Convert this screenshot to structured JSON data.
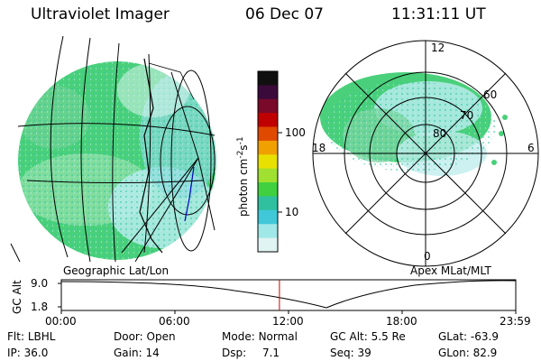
{
  "header": {
    "instrument": "Ultraviolet Imager",
    "date": "06 Dec 07",
    "time": "11:31:11 UT"
  },
  "left_panel": {
    "caption": "Geographic Lat/Lon"
  },
  "right_panel": {
    "caption": "Apex MLat/MLT",
    "mlt_labels": [
      "12",
      "18",
      "6",
      "0"
    ],
    "lat_labels": [
      "60",
      "70",
      "80"
    ]
  },
  "colorbar": {
    "unit_label": "photon cm",
    "unit_exp1": "-2",
    "unit_mid": "s",
    "unit_exp2": "-1",
    "ticks": [
      "100",
      "10"
    ],
    "scale": "log",
    "colors": [
      "#101010",
      "#3a0a3a",
      "#7a0a2a",
      "#c00000",
      "#e04a00",
      "#f0a000",
      "#e8e000",
      "#a0e030",
      "#40d040",
      "#30c0a0",
      "#40c8d8",
      "#a0e8e8",
      "#e0f4f4"
    ]
  },
  "timeline": {
    "ylabel": "GC Alt",
    "y_ticks": [
      "9.0",
      "1.8"
    ],
    "x_ticks": [
      "00:00",
      "06:00",
      "12:00",
      "18:00",
      "23:59"
    ],
    "current_time_hours": 11.52,
    "current_marker_color": "#d00000"
  },
  "info": {
    "flt_label": "Flt:",
    "flt_value": "LBHL",
    "ip_label": "IP:",
    "ip_value": "36.0",
    "door_label": "Door:",
    "door_value": "Open",
    "gain_label": "Gain:",
    "gain_value": "14",
    "mode_label": "Mode:",
    "mode_value": "Normal",
    "dsp_label": "Dsp:",
    "dsp_value": "7.1",
    "gcalt_label": "GC Alt:",
    "gcalt_value": "5.5 Re",
    "seq_label": "Seq:",
    "seq_value": "39",
    "glat_label": "GLat:",
    "glat_value": "-63.9",
    "glon_label": "GLon:",
    "glon_value": "82.9"
  }
}
